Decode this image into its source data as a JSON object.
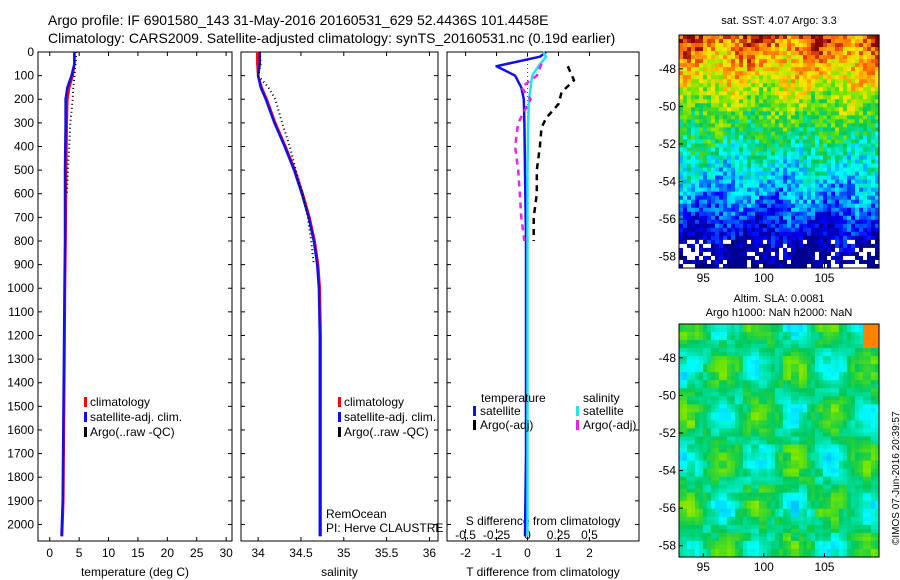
{
  "header": {
    "line1": "Argo profile: IF 6901580_143 31-May-2016 20160531_629 52.4436S 101.4458E",
    "line2": "Climatology: CARS2009. Satellite-adjusted climatology: synTS_20160531.nc (0.19d earlier)"
  },
  "colors": {
    "climatology": "#ff0000",
    "satellite": "#1010ee",
    "argo": "#000000",
    "salinity_sat": "#22e5e5",
    "salinity_argo": "#ee22ee"
  },
  "chart_data": [
    {
      "id": "temperature",
      "type": "line",
      "xlabel": "temperature (deg C)",
      "ylabel": "",
      "xlim": [
        -2,
        31
      ],
      "ylim": [
        2070,
        0
      ],
      "xticks": [
        0,
        5,
        10,
        15,
        20,
        25,
        30
      ],
      "yticks": [
        0,
        100,
        200,
        300,
        400,
        500,
        600,
        700,
        800,
        900,
        1000,
        1100,
        1200,
        1300,
        1400,
        1500,
        1600,
        1700,
        1800,
        1900,
        2000
      ],
      "legend": [
        "climatology",
        "satellite-adj. clim.",
        "Argo(..raw -QC)"
      ],
      "series": [
        {
          "name": "climatology",
          "style": "solid",
          "color": "#ff0000",
          "x": [
            4.2,
            4.2,
            3.9,
            3.3,
            3.0,
            2.9,
            2.8,
            2.7,
            2.6,
            2.5,
            2.4,
            2.3,
            2.1
          ],
          "y": [
            0,
            50,
            100,
            150,
            200,
            300,
            500,
            800,
            1000,
            1300,
            1600,
            1900,
            2050
          ]
        },
        {
          "name": "satellite-adj. clim.",
          "style": "solid",
          "color": "#1010ee",
          "x": [
            4.2,
            4.2,
            3.7,
            3.0,
            2.7,
            2.7,
            2.6,
            2.6,
            2.5,
            2.4,
            2.3,
            2.2,
            2.0
          ],
          "y": [
            0,
            50,
            100,
            150,
            200,
            300,
            500,
            800,
            1000,
            1300,
            1600,
            1900,
            2050
          ]
        },
        {
          "name": "Argo(..raw -QC)",
          "style": "dotted",
          "color": "#000000",
          "x": [
            4.5,
            4.4,
            4.2,
            4.0,
            3.9,
            3.7,
            3.5,
            3.3,
            3.1,
            3.0,
            2.9
          ],
          "y": [
            0,
            50,
            100,
            150,
            200,
            250,
            300,
            400,
            500,
            550,
            600
          ]
        }
      ]
    },
    {
      "id": "salinity",
      "type": "line",
      "xlabel": "salinity",
      "ylabel": "",
      "xlim": [
        33.8,
        36.1
      ],
      "ylim": [
        2070,
        0
      ],
      "xticks": [
        34,
        34.5,
        35,
        35.5,
        36
      ],
      "legend": [
        "climatology",
        "satellite-adj. clim.",
        "Argo(..raw -QC)"
      ],
      "annotation": [
        "RemOcean",
        "PI: Herve CLAUSTRE"
      ],
      "series": [
        {
          "name": "climatology",
          "style": "solid",
          "color": "#ff0000",
          "x": [
            33.99,
            33.99,
            34.0,
            34.04,
            34.1,
            34.2,
            34.32,
            34.43,
            34.52,
            34.6,
            34.66,
            34.7,
            34.72,
            34.73,
            34.73,
            34.73,
            34.73
          ],
          "y": [
            0,
            50,
            100,
            150,
            200,
            300,
            400,
            500,
            600,
            700,
            800,
            900,
            1000,
            1200,
            1500,
            1800,
            2050
          ]
        },
        {
          "name": "satellite-adj. clim.",
          "style": "solid",
          "color": "#1010ee",
          "x": [
            34.02,
            34.02,
            34.0,
            34.03,
            34.09,
            34.19,
            34.31,
            34.42,
            34.51,
            34.59,
            34.65,
            34.69,
            34.71,
            34.72,
            34.72,
            34.72,
            34.72
          ],
          "y": [
            0,
            50,
            100,
            150,
            200,
            300,
            400,
            500,
            600,
            700,
            800,
            900,
            1000,
            1200,
            1500,
            1800,
            2050
          ]
        },
        {
          "name": "Argo(..raw -QC)",
          "style": "dotted",
          "color": "#000000",
          "x": [
            34.02,
            34.03,
            34.0,
            34.12,
            34.2,
            34.28,
            34.37,
            34.44,
            34.52,
            34.58,
            34.62,
            34.65
          ],
          "y": [
            0,
            50,
            100,
            150,
            200,
            300,
            400,
            500,
            600,
            700,
            800,
            900
          ]
        }
      ]
    },
    {
      "id": "difference",
      "type": "line",
      "xlabel": "T difference from climatology",
      "xlabel2": "S difference from climatology",
      "xlim": [
        -2.6,
        3.6
      ],
      "ylim": [
        2070,
        0
      ],
      "xticks": [
        -2,
        -1,
        0,
        1,
        2
      ],
      "xticks2": [
        -0.5,
        -0.25,
        0,
        0.25,
        0.5
      ],
      "legend_titles": [
        "temperature",
        "salinity"
      ],
      "legend": [
        "satellite",
        "Argo(-adj)",
        "satellite",
        "Argo(-adj)"
      ],
      "series": [
        {
          "name": "satellite",
          "group": "temperature",
          "style": "solid",
          "color": "#1010ee",
          "x": [
            0.6,
            0.4,
            -1.0,
            -0.4,
            -0.2,
            -0.12,
            -0.1,
            -0.08,
            -0.05,
            -0.05,
            -0.05,
            -0.05,
            -0.08
          ],
          "y": [
            0,
            20,
            60,
            100,
            150,
            200,
            300,
            500,
            800,
            1100,
            1400,
            1700,
            2050
          ]
        },
        {
          "name": "Argo(-adj)",
          "group": "temperature",
          "style": "dashed",
          "color": "#000000",
          "x": [
            1.3,
            1.5,
            1.1,
            1.0,
            0.6,
            0.45,
            0.4,
            0.3,
            0.3,
            0.2,
            0.2
          ],
          "y": [
            60,
            120,
            170,
            220,
            280,
            320,
            400,
            500,
            600,
            700,
            800
          ]
        },
        {
          "name": "satellite",
          "group": "salinity",
          "style": "solid",
          "color": "#22e5e5",
          "x": [
            0.5,
            0.6,
            0.35,
            0.15,
            0.05,
            0.02,
            0.0,
            0.0,
            0.0,
            0.0,
            0.0
          ],
          "y": [
            0,
            20,
            60,
            100,
            200,
            300,
            500,
            800,
            1100,
            1500,
            2050
          ]
        },
        {
          "name": "Argo(-adj)",
          "group": "salinity",
          "style": "dashed",
          "color": "#ee22ee",
          "x": [
            0.45,
            0.3,
            -0.2,
            0.1,
            -0.3,
            -0.4,
            -0.3,
            -0.25,
            -0.2,
            -0.1
          ],
          "y": [
            50,
            100,
            150,
            200,
            300,
            400,
            500,
            600,
            700,
            800
          ]
        }
      ]
    },
    {
      "id": "sst_map",
      "type": "heatmap",
      "title": "sat. SST: 4.07 Argo: 3.3",
      "xticks": [
        95,
        100,
        105
      ],
      "yticks": [
        -48,
        -50,
        -52,
        -54,
        -56,
        -58
      ],
      "xlim": [
        93,
        109.5
      ],
      "ylim": [
        -58.6,
        -46.2
      ]
    },
    {
      "id": "sla_map",
      "type": "heatmap",
      "title": "Altim. SLA: 0.0081",
      "subtitle": "Argo h1000: NaN h2000: NaN",
      "xticks": [
        95,
        100,
        105
      ],
      "yticks": [
        -48,
        -50,
        -52,
        -54,
        -56,
        -58
      ],
      "xlim": [
        93,
        109.5
      ],
      "ylim": [
        -58.6,
        -46.2
      ]
    }
  ],
  "copyright": "©IMOS 07-Jun-2016 20:39:57"
}
